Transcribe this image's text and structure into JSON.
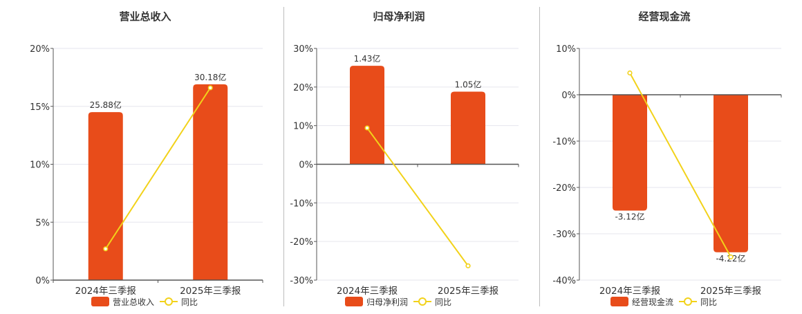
{
  "colors": {
    "bar": "#e84c1a",
    "line": "#f2d21a",
    "axis": "#555555",
    "grid": "#e6e6ee",
    "text": "#333333",
    "divider": "#bdbdbd"
  },
  "chart_data": [
    {
      "type": "bar",
      "title": "营业总收入",
      "categories": [
        "2024年三季报",
        "2025年三季报"
      ],
      "series": [
        {
          "name": "营业总收入",
          "type": "bar",
          "values": [
            14.5,
            16.9
          ],
          "labels": [
            "25.88亿",
            "30.18亿"
          ]
        },
        {
          "name": "同比",
          "type": "line",
          "values": [
            2.7,
            16.6
          ]
        }
      ],
      "ylim": [
        0,
        20
      ],
      "yticks": [
        0,
        5,
        10,
        15,
        20
      ],
      "ytick_labels": [
        "0%",
        "5%",
        "10%",
        "15%",
        "20%"
      ],
      "grid": true,
      "legend": "bottom"
    },
    {
      "type": "bar",
      "title": "归母净利润",
      "categories": [
        "2024年三季报",
        "2025年三季报"
      ],
      "series": [
        {
          "name": "归母净利润",
          "type": "bar",
          "values": [
            25.5,
            18.8
          ],
          "labels": [
            "1.43亿",
            "1.05亿"
          ]
        },
        {
          "name": "同比",
          "type": "line",
          "values": [
            9.4,
            -26.3
          ]
        }
      ],
      "ylim": [
        -30,
        30
      ],
      "yticks": [
        -30,
        -20,
        -10,
        0,
        10,
        20,
        30
      ],
      "ytick_labels": [
        "-30%",
        "-20%",
        "-10%",
        "0%",
        "10%",
        "20%",
        "30%"
      ],
      "grid": true,
      "legend": "bottom"
    },
    {
      "type": "bar",
      "title": "经营现金流",
      "categories": [
        "2024年三季报",
        "2025年三季报"
      ],
      "series": [
        {
          "name": "经营现金流",
          "type": "bar",
          "values": [
            -25.0,
            -34.0
          ],
          "labels": [
            "-3.12亿",
            "-4.22亿"
          ]
        },
        {
          "name": "同比",
          "type": "line",
          "values": [
            4.7,
            -35.0
          ]
        }
      ],
      "ylim": [
        -40,
        10
      ],
      "yticks": [
        -40,
        -30,
        -20,
        -10,
        0,
        10
      ],
      "ytick_labels": [
        "-40%",
        "-30%",
        "-20%",
        "-10%",
        "0%",
        "10%"
      ],
      "grid": true,
      "legend": "bottom"
    }
  ]
}
